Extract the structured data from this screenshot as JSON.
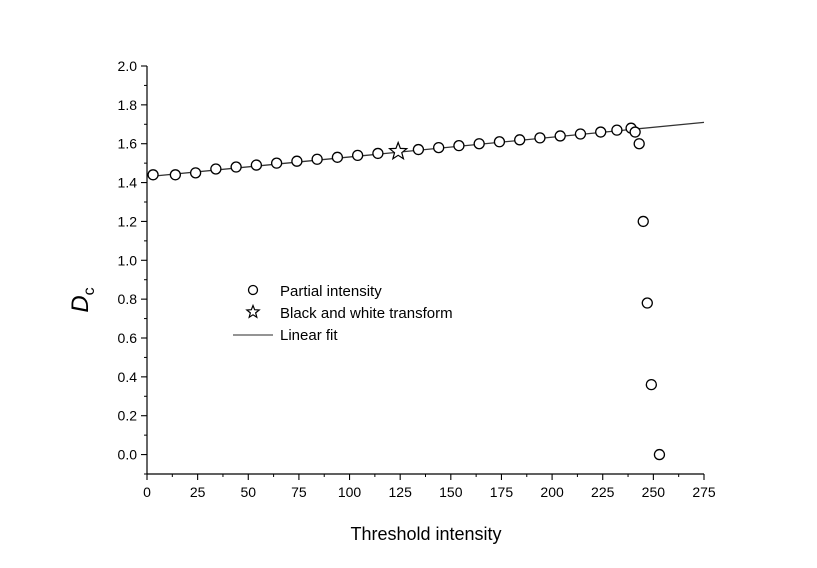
{
  "chart_data": {
    "type": "scatter",
    "title": "",
    "xlabel": "Threshold intensity",
    "ylabel": "D",
    "ylabel_subscript": "c",
    "xlim": [
      0,
      275
    ],
    "ylim": [
      -0.1,
      2.0
    ],
    "xticks": [
      "0",
      "25",
      "50",
      "75",
      "100",
      "125",
      "150",
      "175",
      "200",
      "225",
      "250",
      "275"
    ],
    "yticks": [
      "0.0",
      "0.2",
      "0.4",
      "0.6",
      "0.8",
      "1.0",
      "1.2",
      "1.4",
      "1.6",
      "1.8",
      "2.0"
    ],
    "grid": false,
    "legend_position": "center-left",
    "series": [
      {
        "name": "Partial intensity",
        "marker": "circle",
        "points": [
          [
            3,
            1.44
          ],
          [
            14,
            1.44
          ],
          [
            24,
            1.45
          ],
          [
            34,
            1.47
          ],
          [
            44,
            1.48
          ],
          [
            54,
            1.49
          ],
          [
            64,
            1.5
          ],
          [
            74,
            1.51
          ],
          [
            84,
            1.52
          ],
          [
            94,
            1.53
          ],
          [
            104,
            1.54
          ],
          [
            114,
            1.55
          ],
          [
            134,
            1.57
          ],
          [
            144,
            1.58
          ],
          [
            154,
            1.59
          ],
          [
            164,
            1.6
          ],
          [
            174,
            1.61
          ],
          [
            184,
            1.62
          ],
          [
            194,
            1.63
          ],
          [
            204,
            1.64
          ],
          [
            214,
            1.65
          ],
          [
            224,
            1.66
          ],
          [
            232,
            1.67
          ],
          [
            239,
            1.68
          ],
          [
            241,
            1.66
          ],
          [
            243,
            1.6
          ],
          [
            245,
            1.2
          ],
          [
            247,
            0.78
          ],
          [
            249,
            0.36
          ],
          [
            253,
            0.0
          ]
        ]
      },
      {
        "name": "Black and white transform",
        "marker": "star",
        "points": [
          [
            124,
            1.56
          ]
        ]
      },
      {
        "name": "Linear fit",
        "marker": "line",
        "points": [
          [
            0,
            1.43
          ],
          [
            275,
            1.71
          ]
        ]
      }
    ]
  }
}
